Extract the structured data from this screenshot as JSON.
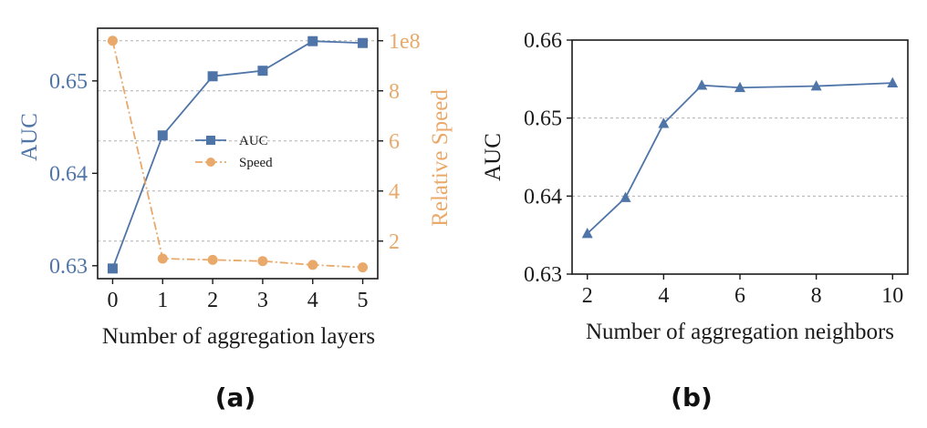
{
  "colors": {
    "auc": "#4f75a8",
    "speed": "#e8a96a",
    "grid": "#b0b0b0",
    "axis": "#1a1a1a"
  },
  "chart_data": [
    {
      "type": "line",
      "panel": "a",
      "caption": "(a)",
      "xlabel": "Number of aggregation layers",
      "ylabel_left": "AUC",
      "ylabel_right": "Relative Speed",
      "right_axis_scale_label": "1e8",
      "x": [
        0,
        1,
        2,
        3,
        4,
        5
      ],
      "x_ticks": [
        "0",
        "1",
        "2",
        "3",
        "4",
        "5"
      ],
      "xlim": [
        -0.3,
        5.3
      ],
      "ylim_left": [
        0.6286,
        0.6557
      ],
      "ylim_right": [
        0.5,
        10.5
      ],
      "left_ticks": [
        0.63,
        0.64,
        0.65
      ],
      "left_tick_labels": [
        "0.63",
        "0.64",
        "0.65"
      ],
      "right_ticks": [
        2,
        4,
        6,
        8
      ],
      "right_tick_labels": [
        "2",
        "4",
        "6",
        "8"
      ],
      "right_top_label": "1e8",
      "grid": "horizontal dashed (right axis)",
      "legend_position": "center-right",
      "series": [
        {
          "name": "AUC",
          "axis": "left",
          "marker": "square",
          "linestyle": "solid",
          "values": [
            0.6297,
            0.6441,
            0.6505,
            0.6511,
            0.6543,
            0.6541
          ]
        },
        {
          "name": "Speed",
          "axis": "right",
          "marker": "circle",
          "linestyle": "dashdot",
          "values": [
            10.0,
            1.3,
            1.25,
            1.2,
            1.05,
            0.95
          ]
        }
      ]
    },
    {
      "type": "line",
      "panel": "b",
      "caption": "(b)",
      "xlabel": "Number of aggregation neighbors",
      "ylabel": "AUC",
      "x": [
        2,
        3,
        4,
        5,
        6,
        8,
        10
      ],
      "x_ticks": [
        2,
        4,
        6,
        8,
        10
      ],
      "x_tick_labels": [
        "2",
        "4",
        "6",
        "8",
        "10"
      ],
      "xlim": [
        1.6,
        10.4
      ],
      "ylim": [
        0.63,
        0.66
      ],
      "y_ticks": [
        0.63,
        0.64,
        0.65,
        0.66
      ],
      "y_tick_labels": [
        "0.63",
        "0.64",
        "0.65",
        "0.66"
      ],
      "grid": "horizontal dashed",
      "series": [
        {
          "name": "AUC",
          "marker": "triangle",
          "linestyle": "solid",
          "values": [
            0.6352,
            0.6398,
            0.6493,
            0.6542,
            0.6539,
            0.6541,
            0.6545
          ]
        }
      ]
    }
  ]
}
